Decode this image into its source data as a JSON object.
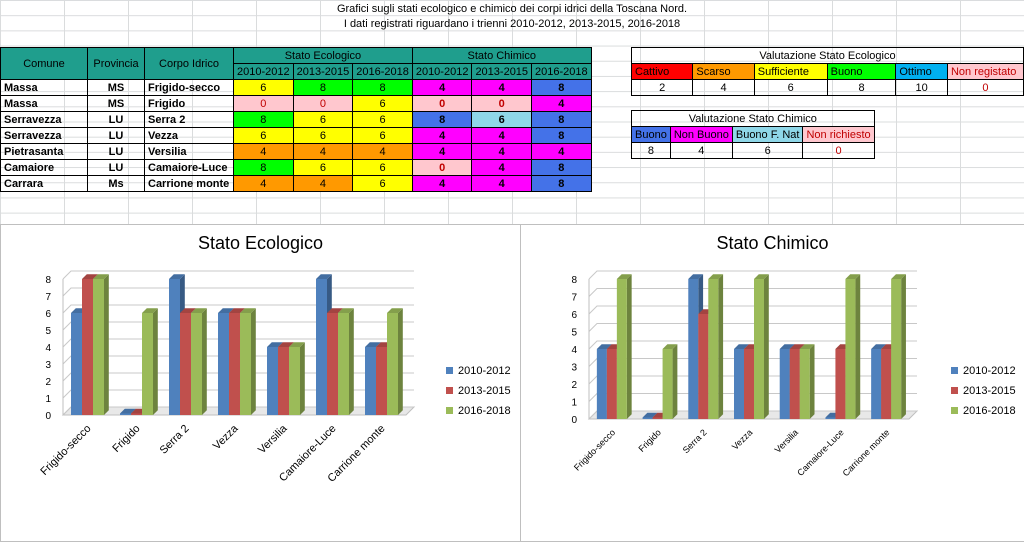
{
  "header": {
    "line1": "Grafici sugli stati ecologico e chimico dei corpi idrici della Toscana Nord.",
    "line2": "I dati registrati riguardano i trienni 2010-2012, 2013-2015, 2016-2018"
  },
  "main_table": {
    "col_comune": "Comune",
    "col_provincia": "Provincia",
    "col_corpo": "Corpo Idrico",
    "group_ecologico": "Stato Ecologico",
    "group_chimico": "Stato Chimico",
    "periods": [
      "2010-2012",
      "2013-2015",
      "2016-2018"
    ],
    "rows": [
      {
        "comune": "Massa",
        "provincia": "MS",
        "corpo": "Frigido-secco",
        "eco": [
          "6",
          "8",
          "8"
        ],
        "chim": [
          "4",
          "4",
          "8"
        ]
      },
      {
        "comune": "Massa",
        "provincia": "MS",
        "corpo": "Frigido",
        "eco": [
          "0",
          "0",
          "6"
        ],
        "chim": [
          "0",
          "0",
          "4"
        ]
      },
      {
        "comune": "Serravezza",
        "provincia": "LU",
        "corpo": "Serra 2",
        "eco": [
          "8",
          "6",
          "6"
        ],
        "chim": [
          "8",
          "6",
          "8"
        ]
      },
      {
        "comune": "Serravezza",
        "provincia": "LU",
        "corpo": "Vezza",
        "eco": [
          "6",
          "6",
          "6"
        ],
        "chim": [
          "4",
          "4",
          "8"
        ]
      },
      {
        "comune": "Pietrasanta",
        "provincia": "LU",
        "corpo": "Versilia",
        "eco": [
          "4",
          "4",
          "4"
        ],
        "chim": [
          "4",
          "4",
          "4"
        ]
      },
      {
        "comune": "Camaiore",
        "provincia": "LU",
        "corpo": "Camaiore-Luce",
        "eco": [
          "8",
          "6",
          "6"
        ],
        "chim": [
          "0",
          "4",
          "8"
        ]
      },
      {
        "comune": "Carrara",
        "provincia": "Ms",
        "corpo": "Carrione monte",
        "eco": [
          "4",
          "4",
          "6"
        ],
        "chim": [
          "4",
          "4",
          "8"
        ]
      }
    ]
  },
  "legend_ecologico": {
    "title": "Valutazione Stato Ecologico",
    "labels": [
      "Cattivo",
      "Scarso",
      "Sufficiente",
      "Buono",
      "Ottimo",
      "Non registato"
    ],
    "values": [
      "2",
      "4",
      "6",
      "8",
      "10",
      "0"
    ]
  },
  "legend_chimico": {
    "title": "Valutazione Stato Chimico",
    "labels": [
      "Buono",
      "Non Buono",
      "Buono F. Nat",
      "Non richiesto"
    ],
    "values": [
      "8",
      "4",
      "6",
      "0"
    ]
  },
  "colors": {
    "series": [
      "#4f81bd",
      "#c0504d",
      "#9bbb59"
    ],
    "cattivo": "#ff0000",
    "scarso": "#ff9900",
    "sufficiente": "#ffff00",
    "buono": "#00ff00",
    "ottimo": "#00b0f0",
    "non_registrato": "#ffc7ce",
    "chim_buono": "#4472e8",
    "chim_non_buono": "#ff00ff",
    "chim_fnat": "#8fd7e8"
  },
  "chart_data": [
    {
      "type": "bar",
      "title": "Stato Ecologico",
      "categories": [
        "Frigido-secco",
        "Frigido",
        "Serra 2",
        "Vezza",
        "Versilia",
        "Camaiore-Luce",
        "Carrione monte"
      ],
      "series": [
        {
          "name": "2010-2012",
          "values": [
            6,
            0,
            8,
            6,
            4,
            8,
            4
          ]
        },
        {
          "name": "2013-2015",
          "values": [
            8,
            0,
            6,
            6,
            4,
            6,
            4
          ]
        },
        {
          "name": "2016-2018",
          "values": [
            8,
            6,
            6,
            6,
            4,
            6,
            6
          ]
        }
      ],
      "yticks": [
        "0",
        "1",
        "2",
        "3",
        "4",
        "5",
        "6",
        "7",
        "8"
      ],
      "ylim": [
        0,
        8
      ],
      "grid": true,
      "legend": "right"
    },
    {
      "type": "bar",
      "title": "Stato Chimico",
      "categories": [
        "Frigido-secco",
        "Frigido",
        "Serra 2",
        "Vezza",
        "Versilia",
        "Camaiore-Luce",
        "Carrione monte"
      ],
      "series": [
        {
          "name": "2010-2012",
          "values": [
            4,
            0,
            8,
            4,
            4,
            0,
            4
          ]
        },
        {
          "name": "2013-2015",
          "values": [
            4,
            0,
            6,
            4,
            4,
            4,
            4
          ]
        },
        {
          "name": "2016-2018",
          "values": [
            8,
            4,
            8,
            8,
            4,
            8,
            8
          ]
        }
      ],
      "yticks": [
        "0",
        "1",
        "2",
        "3",
        "4",
        "5",
        "6",
        "7",
        "8"
      ],
      "ylim": [
        0,
        8
      ],
      "grid": true,
      "legend": "right"
    }
  ]
}
